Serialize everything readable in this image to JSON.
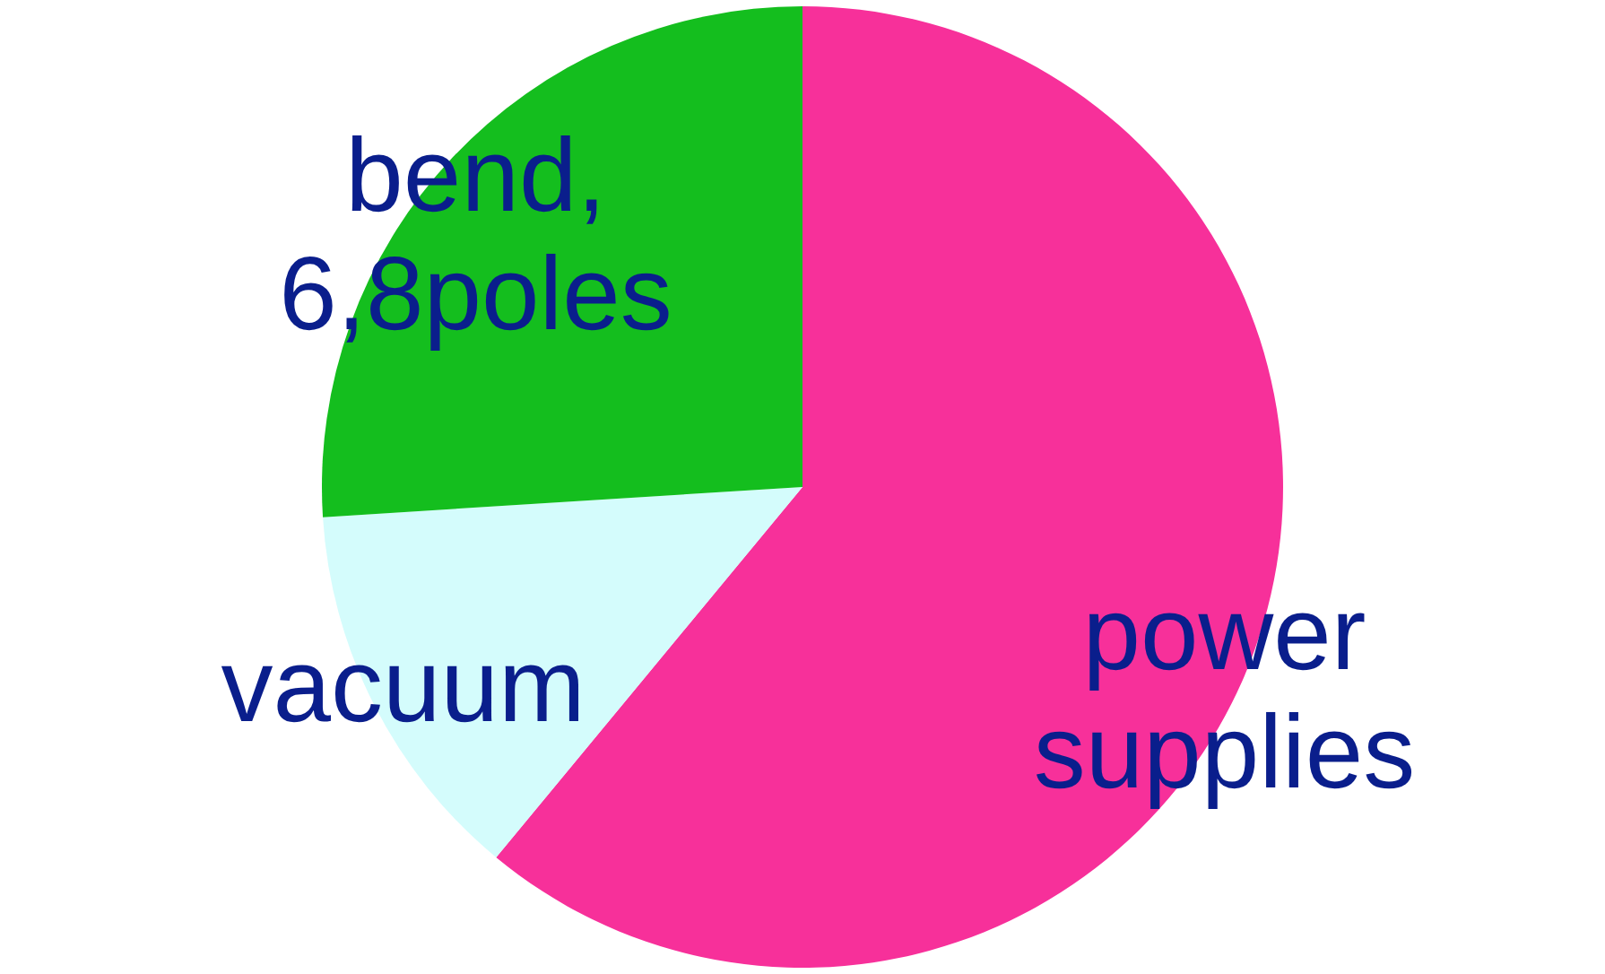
{
  "chart_data": {
    "type": "pie",
    "categories": [
      "power supplies",
      "vacuum",
      "bend, 6,8poles"
    ],
    "values": [
      61,
      13,
      26
    ],
    "colors": [
      "#f7309a",
      "#d4fcfc",
      "#14be1e"
    ],
    "legend": false
  }
}
